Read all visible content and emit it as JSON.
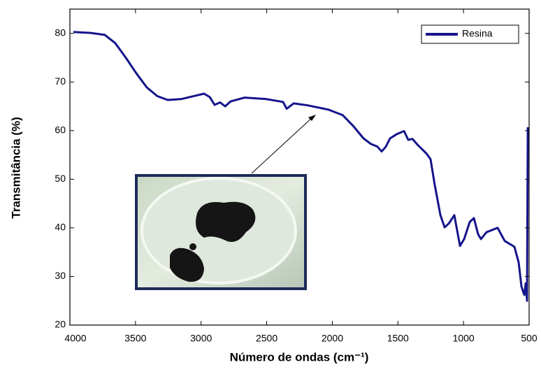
{
  "chart_data": {
    "type": "line",
    "x_label": "Número de ondas (cm⁻¹)",
    "y_label": "Transmitância (%)",
    "x": [
      3973,
      3840,
      3734,
      3654,
      3574,
      3494,
      3414,
      3334,
      3254,
      3148,
      3041,
      2977,
      2934,
      2897,
      2855,
      2817,
      2775,
      2668,
      2508,
      2375,
      2348,
      2295,
      2189,
      2029,
      1922,
      1842,
      1762,
      1709,
      1656,
      1624,
      1592,
      1560,
      1507,
      1453,
      1421,
      1389,
      1347,
      1283,
      1251,
      1219,
      1176,
      1144,
      1112,
      1070,
      1048,
      1027,
      995,
      953,
      921,
      889,
      867,
      825,
      740,
      686,
      612,
      580,
      558,
      537,
      526,
      516,
      510
    ],
    "series": [
      {
        "name": "Resina",
        "color": "#14148c",
        "values": [
          80.3,
          80.1,
          79.7,
          78.0,
          75.0,
          71.8,
          68.9,
          67.1,
          66.3,
          66.5,
          67.2,
          67.6,
          66.9,
          65.3,
          65.8,
          65.0,
          66.0,
          66.8,
          66.5,
          65.9,
          64.5,
          65.6,
          65.2,
          64.3,
          63.2,
          61.0,
          58.4,
          57.3,
          56.7,
          55.7,
          56.7,
          58.4,
          59.3,
          59.9,
          58.1,
          58.3,
          57.0,
          55.3,
          54.1,
          48.8,
          42.6,
          40.1,
          40.9,
          42.6,
          39.4,
          36.3,
          37.7,
          41.2,
          42.0,
          38.7,
          37.7,
          39.1,
          40.0,
          37.3,
          36.1,
          32.9,
          27.9,
          26.2,
          28.6,
          25.0,
          60.7
        ]
      }
    ],
    "xlim": [
      4000,
      500
    ],
    "ylim": [
      20,
      85
    ],
    "xticks": [
      4000,
      3500,
      3000,
      2500,
      2000,
      1500,
      1000,
      500
    ],
    "yticks": [
      20,
      30,
      40,
      50,
      60,
      70,
      80
    ],
    "legend": "upper right"
  }
}
